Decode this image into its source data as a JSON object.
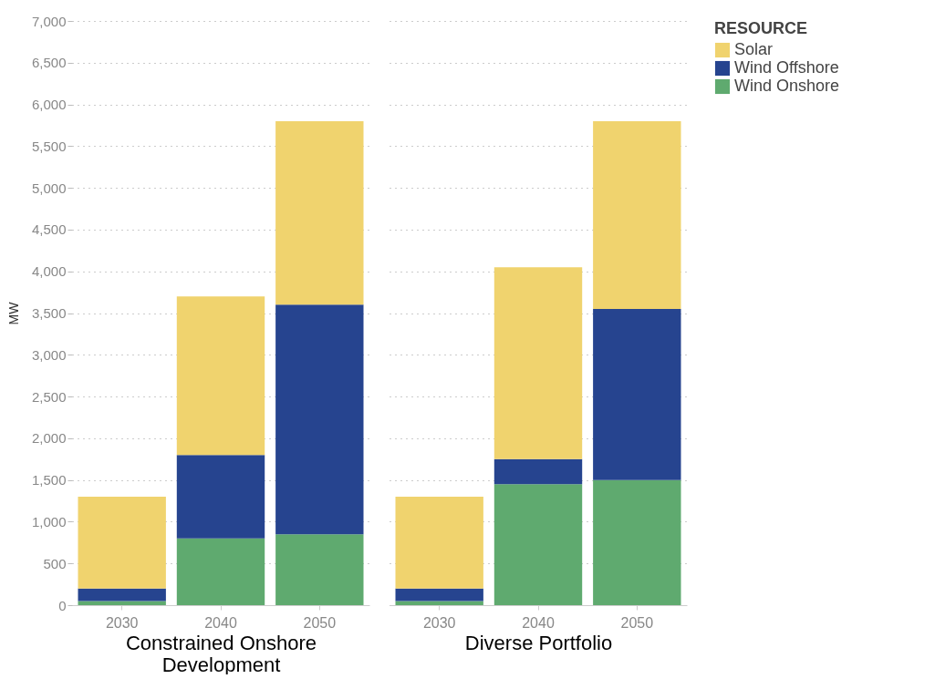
{
  "chart_data": [
    {
      "type": "bar",
      "stacked": true,
      "xlabel": "Constrained Onshore Development",
      "ylabel": "MW",
      "legend_title": "RESOURCE",
      "legend": "top right",
      "grid": "y",
      "categories": [
        "2030",
        "2040",
        "2050"
      ],
      "ylim": [
        0,
        7000
      ],
      "yticks": [
        0,
        {
          "value": 500,
          "label": "500"
        },
        {
          "value": 1000,
          "label": "1,000"
        },
        {
          "value": 1500,
          "label": "1,500"
        },
        {
          "value": 2000,
          "label": "2,000"
        },
        {
          "value": 2500,
          "label": "2,500"
        },
        {
          "value": 3000,
          "label": "3,000"
        },
        {
          "value": 3500,
          "label": "3,500"
        },
        {
          "value": 4000,
          "label": "4,000"
        },
        {
          "value": 4500,
          "label": "4,500"
        },
        {
          "value": 5000,
          "label": "5,000"
        },
        {
          "value": 5500,
          "label": "5,500"
        },
        {
          "value": 6000,
          "label": "6,000"
        },
        {
          "value": 6500,
          "label": "6,500"
        },
        {
          "value": 7000,
          "label": "7,000"
        }
      ],
      "series": [
        {
          "name": "Wind Onshore",
          "color": "#5faa6f",
          "values": [
            50,
            800,
            850
          ]
        },
        {
          "name": "Wind Offshore",
          "color": "#26448f",
          "values": [
            150,
            1000,
            2750
          ]
        },
        {
          "name": "Solar",
          "color": "#f0d36e",
          "values": [
            1100,
            1900,
            2200
          ]
        }
      ]
    },
    {
      "type": "bar",
      "stacked": true,
      "xlabel": "Diverse Portfolio",
      "grid": "y",
      "tick_labels": "x",
      "categories": [
        "2030",
        "2040",
        "2050"
      ],
      "ylim": [
        0,
        7000
      ],
      "yticks": [
        0,
        500,
        1000,
        1500,
        2000,
        2500,
        3000,
        3500,
        4000,
        4500,
        5000,
        5500,
        6000,
        6500,
        7000
      ],
      "series": [
        {
          "color": "#5faa6f",
          "values": [
            50,
            1450,
            1500
          ]
        },
        {
          "color": "#26448f",
          "values": [
            150,
            300,
            2050
          ]
        },
        {
          "color": "#f0d36e",
          "values": [
            1100,
            2300,
            2250
          ]
        }
      ]
    }
  ]
}
